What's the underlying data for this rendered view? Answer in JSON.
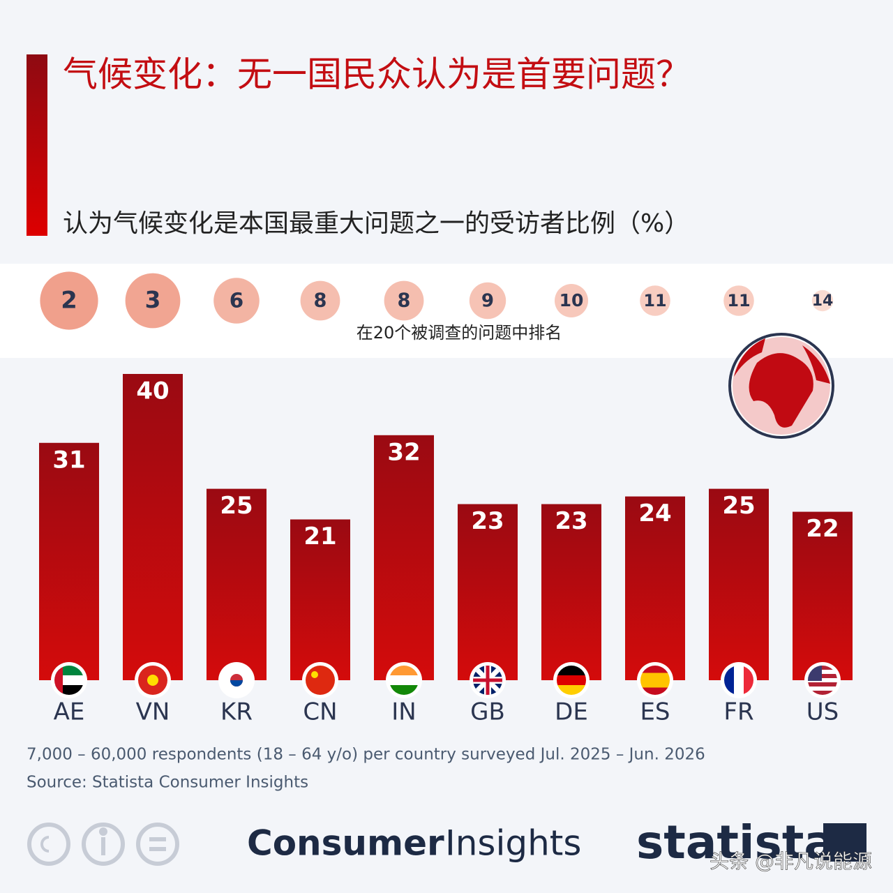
{
  "chart_data": {
    "type": "bar",
    "title": "气候变化：无一国民众认为是首要问题？",
    "subtitle": "认为气候变化是本国最重大问题之一的受访者比例（%）",
    "categories": [
      "AE",
      "VN",
      "KR",
      "CN",
      "IN",
      "GB",
      "DE",
      "ES",
      "FR",
      "US"
    ],
    "values": [
      31,
      40,
      25,
      21,
      32,
      23,
      23,
      24,
      25,
      22
    ],
    "color": "#c10a12",
    "rank_label": "在20个被调查的问题中排名",
    "ranks": [
      2,
      3,
      6,
      8,
      8,
      9,
      10,
      11,
      11,
      14
    ]
  },
  "footer": {
    "note": "7,000 – 60,000 respondents (18 – 64 y/o) per country surveyed Jul. 2025 – Jun. 2026",
    "source": "Source: Statista Consumer Insights",
    "product_bold": "Consumer",
    "product_light": "Insights",
    "brand": "statista",
    "watermark": "头条 @非凡说能源"
  }
}
